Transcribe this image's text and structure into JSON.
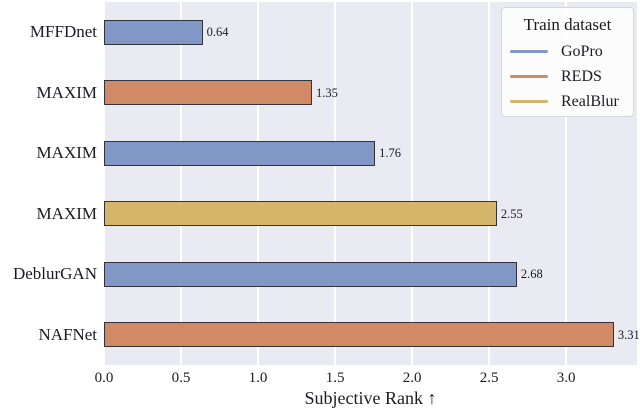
{
  "chart_data": {
    "type": "bar",
    "orientation": "horizontal",
    "title": "",
    "xlabel": "Subjective Rank ↑",
    "ylabel": "",
    "categories": [
      "MFFDnet",
      "MAXIM",
      "MAXIM",
      "MAXIM",
      "DeblurGAN",
      "NAFNet"
    ],
    "values": [
      0.64,
      1.35,
      1.76,
      2.55,
      2.68,
      3.31
    ],
    "value_labels": [
      "0.64",
      "1.35",
      "1.76",
      "2.55",
      "2.68",
      "3.31"
    ],
    "bar_datasets": [
      "GoPro",
      "REDS",
      "GoPro",
      "RealBlur",
      "GoPro",
      "REDS"
    ],
    "xticks": [
      {
        "value": 0,
        "label": "0.0"
      },
      {
        "value": 0.5,
        "label": "0.5"
      },
      {
        "value": 1,
        "label": "1.0"
      },
      {
        "value": 1.5,
        "label": "1.5"
      },
      {
        "value": 2,
        "label": "2.0"
      },
      {
        "value": 2.5,
        "label": "2.5"
      },
      {
        "value": 3,
        "label": "3.0"
      }
    ],
    "xlim": [
      0,
      3.46
    ],
    "grid": "vertical",
    "legend": {
      "title": "Train dataset",
      "position": "upper right",
      "entries": [
        {
          "label": "GoPro",
          "color": "#8197c6"
        },
        {
          "label": "REDS",
          "color": "#d18a66"
        },
        {
          "label": "RealBlur",
          "color": "#d5b56a"
        }
      ]
    },
    "colors": {
      "plot_background": "#eaeaf2",
      "figure_background": "#ffffff",
      "gridline": "#ffffff",
      "bar_edge": "#32323a",
      "text": "#1b1b22"
    }
  }
}
